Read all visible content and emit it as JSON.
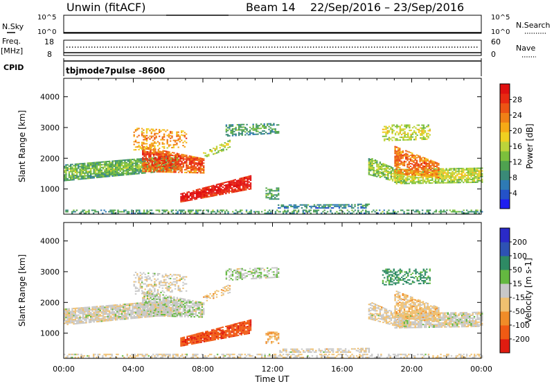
{
  "header": {
    "station": "Unwin (fitACF)",
    "beam_label": "Beam 14",
    "date_range": "22/Sep/2016 – 23/Sep/2016"
  },
  "summary_panels": {
    "nsky_label": "N.Sky",
    "nsky_ticks": [
      "10^5",
      "10^0"
    ],
    "nsearch_label": "N.Search",
    "freq_label": "Freq.",
    "freq_unit": "[MHz]",
    "freq_ticks": [
      "18",
      "8"
    ],
    "nave_label": "Nave",
    "nave_ticks": [
      "60",
      "0"
    ],
    "cpid_label": "CPID",
    "cpid_value": "tbjmode7pulse -8600"
  },
  "chart_data": [
    {
      "type": "heatmap",
      "title": "",
      "xlabel": "Time UT",
      "ylabel": "Slant Range [km]",
      "x_ticks": [
        "00:00",
        "04:00",
        "08:00",
        "12:00",
        "16:00",
        "20:00",
        "00:00"
      ],
      "y_ticks": [
        "1000",
        "2000",
        "3000",
        "4000"
      ],
      "ylim": [
        180,
        4600
      ],
      "xlim_hours": [
        0,
        24
      ],
      "colorbar": {
        "label": "Power [dB]",
        "ticks": [
          "4",
          "8",
          "12",
          "16",
          "20",
          "24",
          "28"
        ],
        "colors": [
          "#1e1ef0",
          "#2452c8",
          "#2e7ab4",
          "#3a8a78",
          "#4fa250",
          "#7cc03c",
          "#bcd43a",
          "#f0d020",
          "#f6aa16",
          "#f08016",
          "#ec5414",
          "#e82a12",
          "#e01010"
        ],
        "range": [
          0,
          32
        ]
      }
    },
    {
      "type": "heatmap",
      "title": "",
      "xlabel": "Time UT",
      "ylabel": "Slant Range [km]",
      "x_ticks": [
        "00:00",
        "04:00",
        "08:00",
        "12:00",
        "16:00",
        "20:00",
        "00:00"
      ],
      "y_ticks": [
        "1000",
        "2000",
        "3000",
        "4000"
      ],
      "ylim": [
        180,
        4600
      ],
      "xlim_hours": [
        0,
        24
      ],
      "colorbar": {
        "label": "Velocity [m s-1]",
        "ticks": [
          "200",
          "100",
          "50",
          "15",
          "-15",
          "-50",
          "-100",
          "-200"
        ],
        "colors": [
          "#2a2ac8",
          "#2e52b4",
          "#2e8a64",
          "#64b840",
          "#c8c8c8",
          "#f0c070",
          "#f08c28",
          "#f05a14",
          "#e01c10"
        ],
        "range": [
          -250,
          250
        ]
      }
    }
  ],
  "colors": {
    "axis": "#000000",
    "background": "#ffffff"
  }
}
